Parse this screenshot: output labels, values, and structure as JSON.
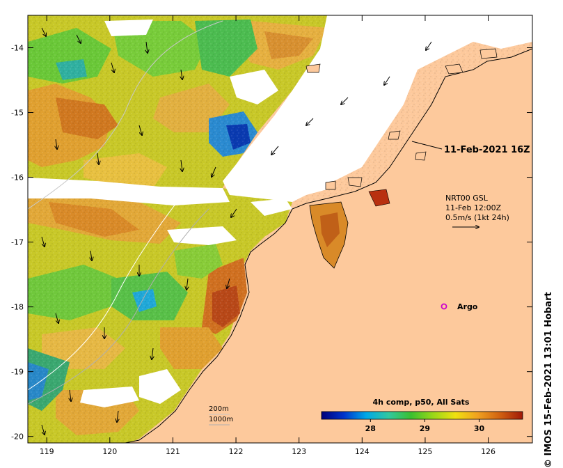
{
  "map": {
    "lon_ticks": [
      119,
      120,
      121,
      122,
      123,
      124,
      125,
      126
    ],
    "lat_ticks": [
      -14,
      -15,
      -16,
      -17,
      -18,
      -19,
      -20
    ],
    "lon_range": [
      118.7,
      126.7
    ],
    "lat_range": [
      -20.1,
      -13.5
    ]
  },
  "annotations": {
    "date_label": "11-Feb-2021 16Z",
    "current_source": "NRT00 GSL",
    "current_time": "11-Feb 12:00Z",
    "vector_scale": "0.5m/s (1kt 24h)",
    "argo_label": "Argo",
    "isobath_200": "200m",
    "isobath_1000": "1000m"
  },
  "colorbar": {
    "title": "4h comp, p50, All Sats",
    "ticks": [
      28,
      29,
      30
    ],
    "range": [
      27.1,
      30.8
    ],
    "colors": [
      "#00007a",
      "#0033cc",
      "#00a8e8",
      "#30c8a0",
      "#3ac030",
      "#9ad818",
      "#f0e010",
      "#f0a020",
      "#d06010",
      "#a01808"
    ]
  },
  "credit": "© IMOS 15-Feb-2021 13:01 Hobart",
  "colors": {
    "land": "#fdc99c",
    "no_data": "#ffffff",
    "argo": "#cc00cc"
  }
}
